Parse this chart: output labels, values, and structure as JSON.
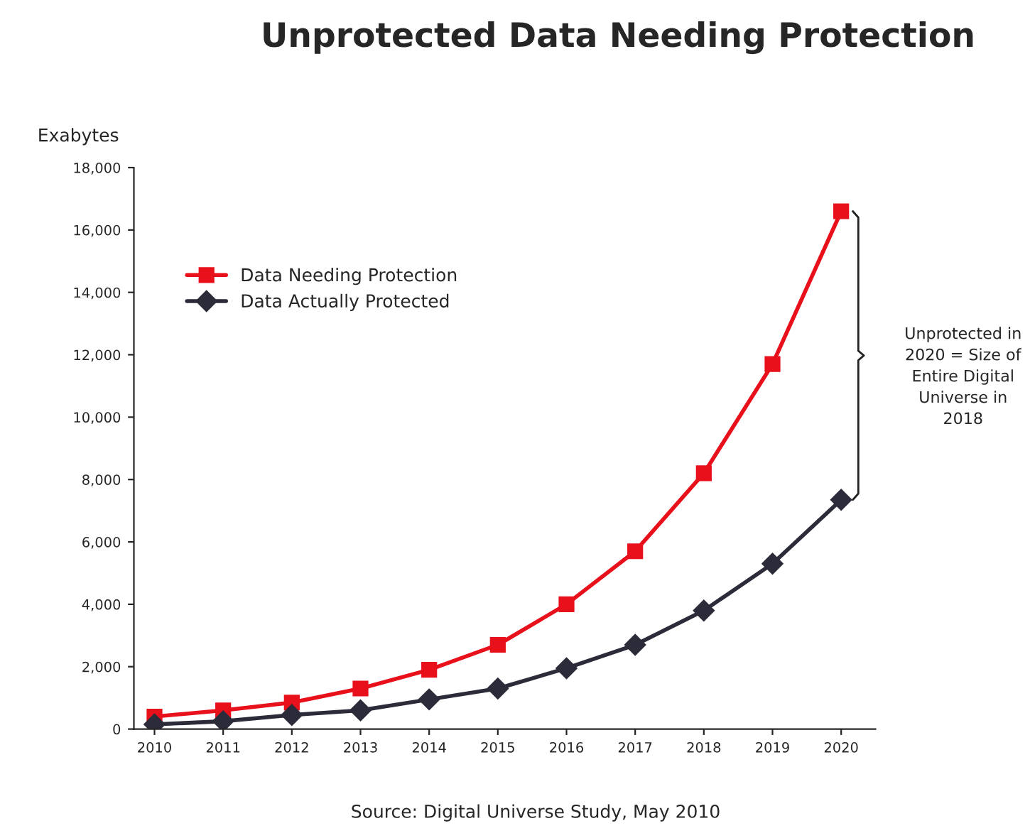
{
  "chart_data": {
    "type": "line",
    "title": "Unprotected Data Needing Protection",
    "ylabel": "Exabytes",
    "categories": [
      "2010",
      "2011",
      "2012",
      "2013",
      "2014",
      "2015",
      "2016",
      "2017",
      "2018",
      "2019",
      "2020"
    ],
    "series": [
      {
        "name": "Data Needing Protection",
        "color": "#e8101a",
        "marker": "square",
        "values": [
          400,
          600,
          850,
          1300,
          1900,
          2700,
          4000,
          5700,
          8200,
          11700,
          16600
        ]
      },
      {
        "name": "Data Actually Protected",
        "color": "#2b2b3a",
        "marker": "diamond",
        "values": [
          150,
          250,
          450,
          600,
          950,
          1300,
          1950,
          2700,
          3800,
          5300,
          7350
        ]
      }
    ],
    "ylim": [
      0,
      18000
    ],
    "yticks": [
      0,
      {
        "value": 2000,
        "label": "2,000"
      },
      {
        "value": 4000,
        "label": "4,000"
      },
      {
        "value": 6000,
        "label": "6,000"
      },
      {
        "value": 8000,
        "label": "8,000"
      },
      {
        "value": 10000,
        "label": "10,000"
      },
      {
        "value": 12000,
        "label": "12,000"
      },
      {
        "value": 14000,
        "label": "14,000"
      },
      {
        "value": 16000,
        "label": "16,000"
      },
      {
        "value": 18000,
        "label": "18,000"
      }
    ],
    "grid": false,
    "legend": "top left",
    "line_style": "solid",
    "annotations": [
      "Unprotected in 2020 = Size of Entire Digital Universe in 2018",
      "Source: Digital Universe Study, May 2010"
    ]
  }
}
